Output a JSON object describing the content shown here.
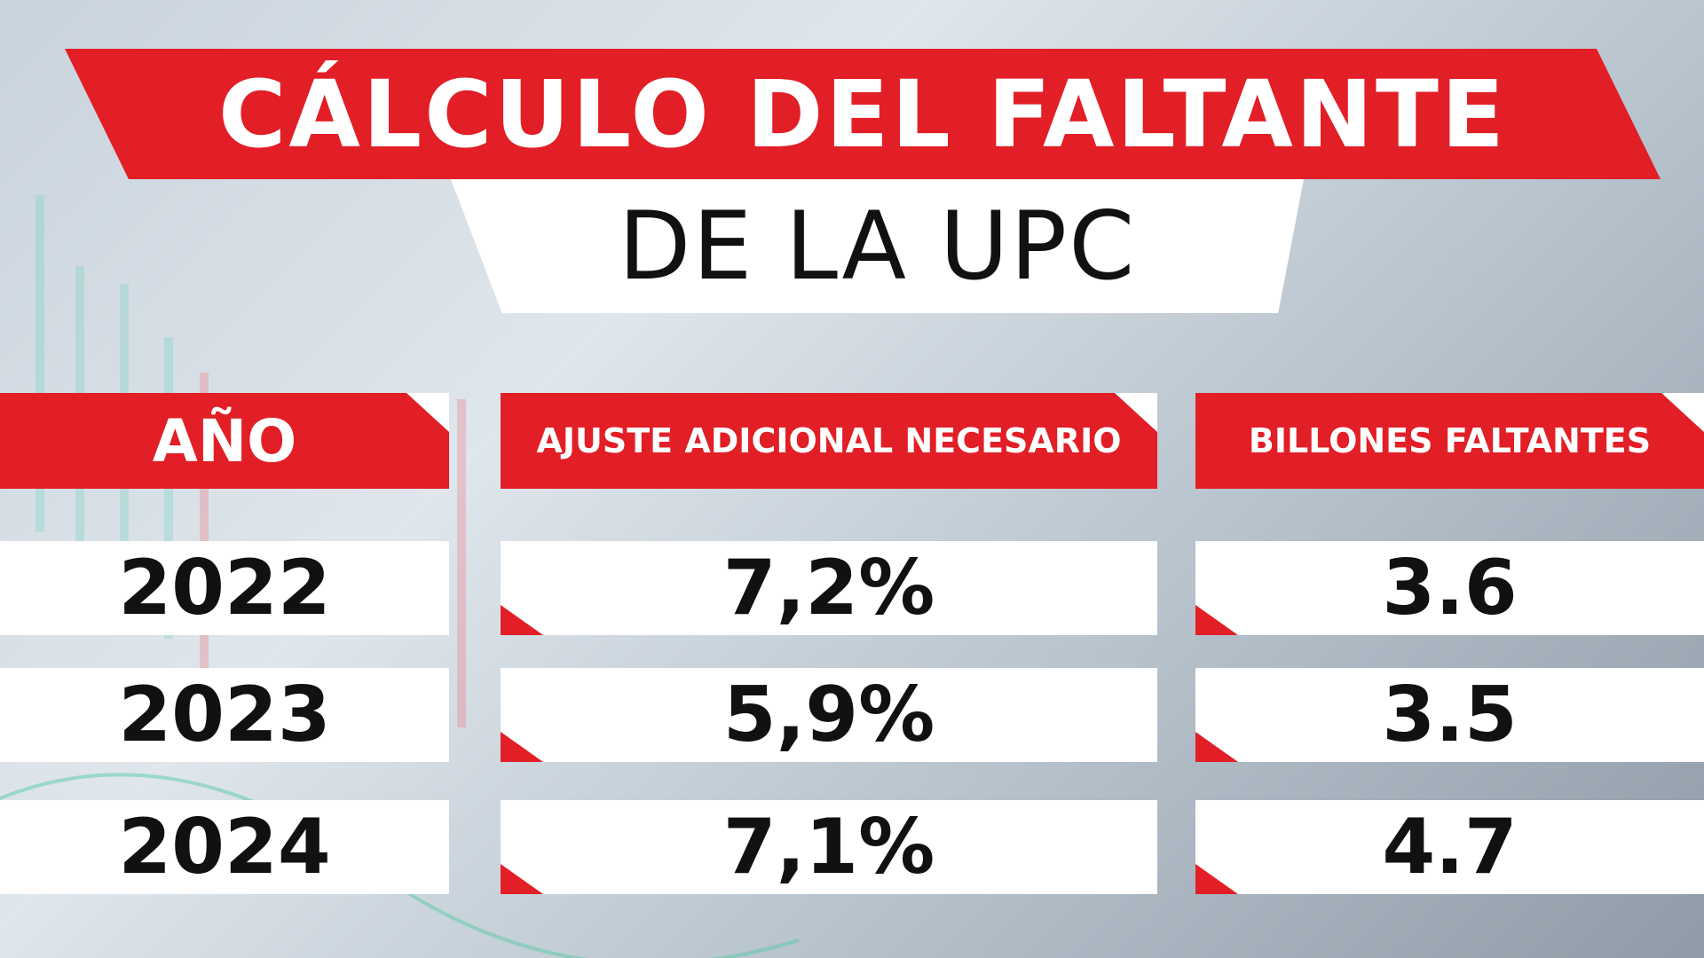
{
  "header": {
    "title": "CÁLCULO DEL FALTANTE",
    "subtitle": "DE LA UPC"
  },
  "table": {
    "columns": [
      "AÑO",
      "AJUSTE ADICIONAL NECESARIO",
      "BILLONES FALTANTES"
    ],
    "rows": [
      [
        "2022",
        "7,2%",
        "3.6"
      ],
      [
        "2023",
        "5,9%",
        "3.5"
      ],
      [
        "2024",
        "7,1%",
        "4.7"
      ]
    ]
  }
}
